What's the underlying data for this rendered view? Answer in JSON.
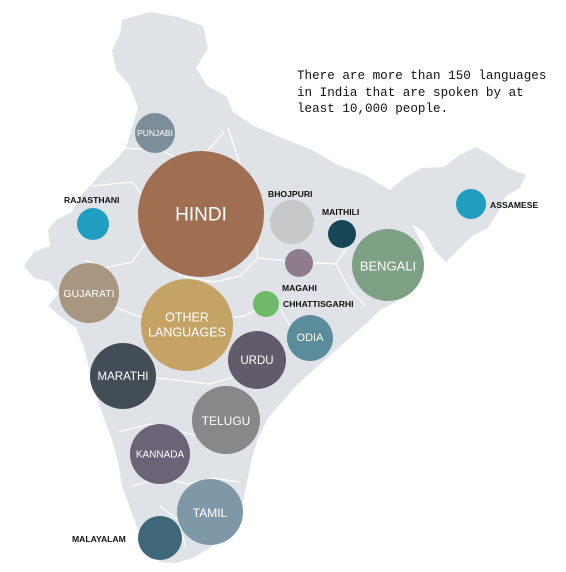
{
  "note": {
    "lines": [
      "There are more than 150 languages",
      "in India that are spoken by at",
      "least 10,000 people."
    ]
  },
  "map_color": "#dfe3e7",
  "border_color": "#ffffff",
  "languages": [
    {
      "key": "punjabi",
      "label": "PUNJABI",
      "color": "#7c8e9c"
    },
    {
      "key": "rajasthani",
      "label": "RAJASTHANI",
      "color": "#1f9ec2"
    },
    {
      "key": "hindi",
      "label": "HINDI",
      "color": "#a06f52"
    },
    {
      "key": "bhojpuri",
      "label": "BHOJPURI",
      "color": "#c7c8ca"
    },
    {
      "key": "maithili",
      "label": "MAITHILI",
      "color": "#174657"
    },
    {
      "key": "assamese",
      "label": "ASSAMESE",
      "color": "#1f9ec2"
    },
    {
      "key": "bengali",
      "label": "BENGALI",
      "color": "#7ea085"
    },
    {
      "key": "magahi",
      "label": "MAGAHI",
      "color": "#8e7b8c"
    },
    {
      "key": "gujarati",
      "label": "GUJARATI",
      "color": "#a89680"
    },
    {
      "key": "chhattisgarhi",
      "label": "CHHATTISGARHI",
      "color": "#6fba68"
    },
    {
      "key": "other",
      "label": "OTHER\nLANGUAGES",
      "color": "#c4a364"
    },
    {
      "key": "odia",
      "label": "ODIA",
      "color": "#5b8c9b"
    },
    {
      "key": "urdu",
      "label": "URDU",
      "color": "#625b6c"
    },
    {
      "key": "marathi",
      "label": "MARATHI",
      "color": "#434d55"
    },
    {
      "key": "telugu",
      "label": "TELUGU",
      "color": "#86888a"
    },
    {
      "key": "kannada",
      "label": "KANNADA",
      "color": "#6b6477"
    },
    {
      "key": "tamil",
      "label": "TAMIL",
      "color": "#7e98a8"
    },
    {
      "key": "malayalam",
      "label": "MALAYALAM",
      "color": "#3f6679"
    }
  ]
}
